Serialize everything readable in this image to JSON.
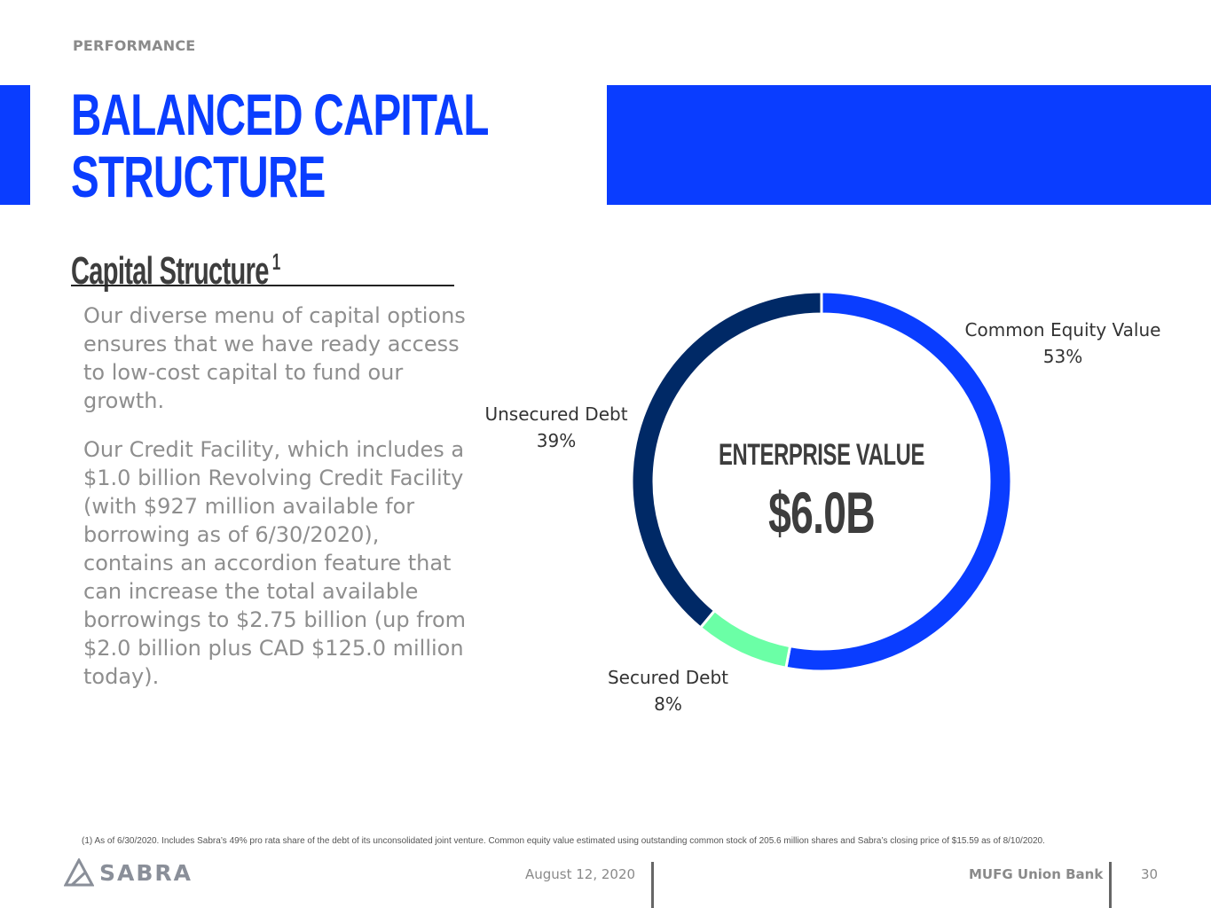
{
  "header": {
    "section": "PERFORMANCE",
    "title_line1": "BALANCED CAPITAL",
    "title_line2": "STRUCTURE",
    "subtitle": "Capital Structure",
    "subtitle_sup": "1"
  },
  "body": {
    "paragraph1": "Our diverse menu of capital options ensures that we have ready access to low-cost capital to fund our growth.",
    "paragraph2": "Our Credit Facility, which includes a $1.0 billion Revolving Credit Facility (with $927 million available for borrowing as of 6/30/2020), contains an accordion feature that can increase the total available borrowings to $2.75 billion (up from $2.0 billion plus CAD $125.0 million today)."
  },
  "chart_data": {
    "type": "pie",
    "donut": true,
    "center_label": "ENTERPRISE VALUE",
    "center_value": "$6.0B",
    "slices": [
      {
        "name": "Common Equity Value",
        "label": "53%",
        "value": 53,
        "color": "#0a3dff"
      },
      {
        "name": "Secured Debt",
        "label": "8%",
        "value": 8,
        "color": "#6bffa6"
      },
      {
        "name": "Unsecured Debt",
        "label": "39%",
        "value": 39,
        "color": "#002966"
      }
    ]
  },
  "footnote": "(1) As of 6/30/2020. Includes Sabra’s 49% pro rata share of the debt of its unconsolidated joint venture. Common equity value estimated using outstanding common stock of 205.6 million shares and Sabra’s closing price of $15.59 as of 8/10/2020.",
  "footer": {
    "logo_text": "SABRA",
    "date": "August 12, 2020",
    "bank": "MUFG Union Bank",
    "page": "30"
  },
  "colors": {
    "brand_blue": "#0a3dff",
    "navy": "#002966",
    "mint": "#6bffa6",
    "gray_text": "#8e8e8e"
  }
}
